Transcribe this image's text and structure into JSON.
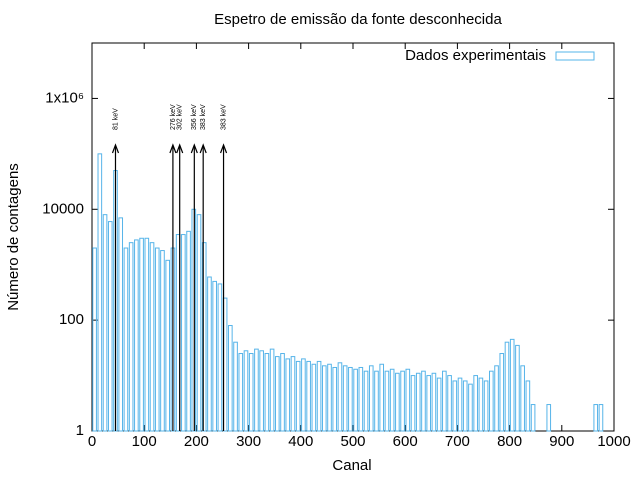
{
  "chart_data": {
    "type": "histogram",
    "title": "Espetro de emissão da fonte desconhecida",
    "xlabel": "Canal",
    "ylabel": "Número de contagens",
    "series": [
      {
        "name": "Dados experimentais",
        "color": "#56b4e9",
        "bins": [
          0,
          10,
          20,
          30,
          40,
          50,
          60,
          70,
          80,
          90,
          100,
          110,
          120,
          130,
          140,
          150,
          160,
          170,
          180,
          190,
          200,
          210,
          220,
          230,
          240,
          250,
          260,
          270,
          280,
          290,
          300,
          310,
          320,
          330,
          340,
          350,
          360,
          370,
          380,
          390,
          400,
          410,
          420,
          430,
          440,
          450,
          460,
          470,
          480,
          490,
          500,
          510,
          520,
          530,
          540,
          550,
          560,
          570,
          580,
          590,
          600,
          610,
          620,
          630,
          640,
          650,
          660,
          670,
          680,
          690,
          700,
          710,
          720,
          730,
          740,
          750,
          760,
          770,
          780,
          790,
          800,
          810,
          820,
          830,
          840,
          850,
          860,
          870,
          880,
          890,
          900,
          910,
          920,
          930,
          940,
          950,
          960,
          970,
          980
        ],
        "values": [
          2000,
          100000,
          8000,
          6000,
          50000,
          7000,
          2000,
          2500,
          2800,
          3000,
          3000,
          2500,
          2000,
          1800,
          1200,
          2000,
          3500,
          3500,
          4000,
          10000,
          8000,
          2500,
          600,
          500,
          450,
          250,
          80,
          40,
          25,
          28,
          25,
          30,
          28,
          25,
          30,
          22,
          25,
          20,
          22,
          18,
          20,
          18,
          16,
          18,
          15,
          16,
          14,
          17,
          15,
          14,
          13,
          14,
          12,
          15,
          12,
          16,
          12,
          13,
          11,
          12,
          13,
          10,
          11,
          12,
          10,
          11,
          9,
          12,
          10,
          8,
          9,
          8,
          7,
          10,
          9,
          8,
          12,
          15,
          25,
          40,
          45,
          35,
          15,
          8,
          3,
          null,
          null,
          3,
          null,
          null,
          null,
          null,
          null,
          null,
          null,
          null,
          3,
          3
        ]
      }
    ],
    "annotations": [
      {
        "text": "81 keV",
        "x": 45
      },
      {
        "text": "276 keV",
        "x": 155
      },
      {
        "text": "302 keV",
        "x": 168
      },
      {
        "text": "356 keV",
        "x": 196
      },
      {
        "text": "383 keV",
        "x": 213
      },
      {
        "text": "383 keV",
        "x": 252
      }
    ],
    "xlim": [
      0,
      1000
    ],
    "xticks": [
      0,
      100,
      200,
      300,
      400,
      500,
      600,
      700,
      800,
      900,
      1000
    ],
    "ylim": [
      1,
      10000000
    ],
    "log_y": true,
    "yticks": [
      1,
      100,
      10000,
      {
        "value": 1000000,
        "label": "1x10⁶"
      }
    ],
    "legend": "top-right"
  }
}
